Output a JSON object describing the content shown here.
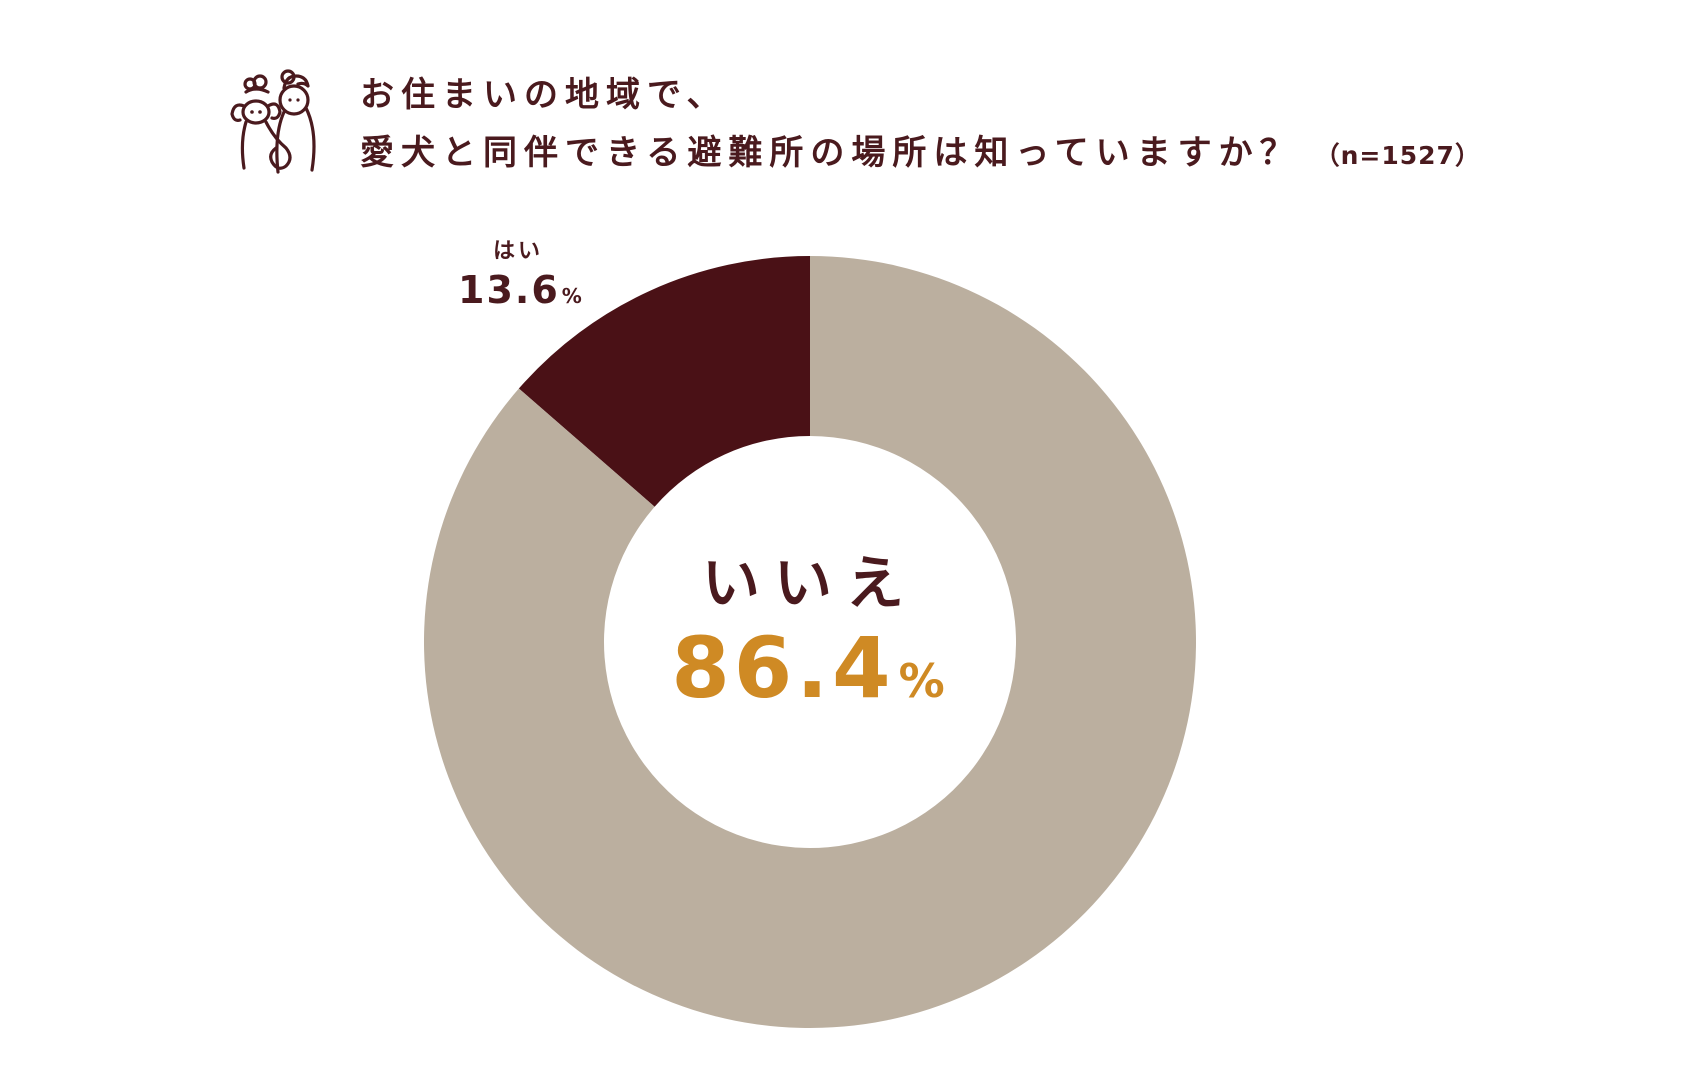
{
  "title": {
    "line1": "お住まいの地域で、",
    "line2": "愛犬と同伴できる避難所の場所は知っていますか？",
    "sample": "（n=1527）"
  },
  "logo_icon": "dog-and-person-icon",
  "colors": {
    "yes": "#4a1116",
    "no": "#bbaf9f",
    "text": "#4a1a1e",
    "highlight": "#cf8a24"
  },
  "chart_data": {
    "type": "pie",
    "donut": true,
    "categories": [
      "はい",
      "いいえ"
    ],
    "values": [
      13.6,
      86.4
    ],
    "unit": "%",
    "value_labels": [
      "13.6",
      "86.4"
    ],
    "n": 1527
  }
}
